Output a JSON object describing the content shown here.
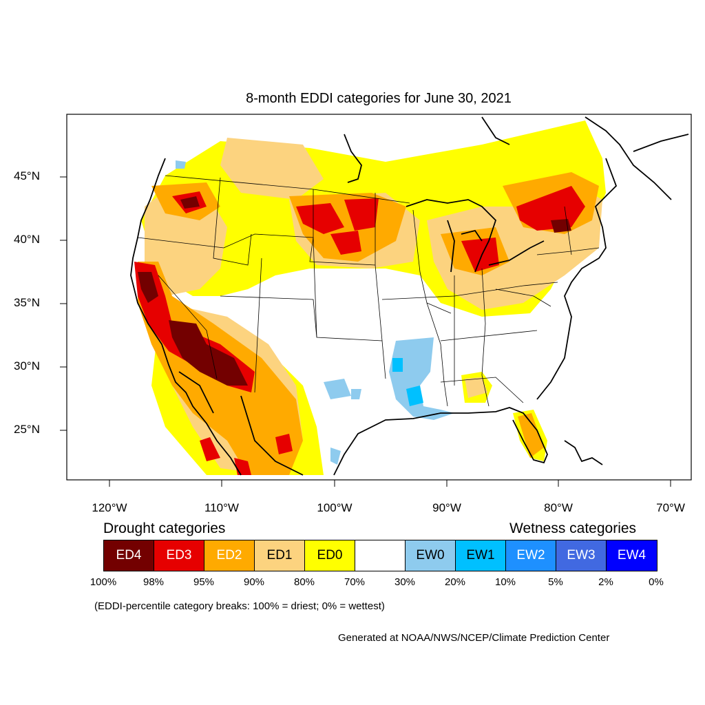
{
  "title": "8-month EDDI categories for June 30, 2021",
  "map": {
    "lat_labels": [
      "45°N",
      "40°N",
      "35°N",
      "30°N",
      "25°N"
    ],
    "lon_labels": [
      "120°W",
      "110°W",
      "100°W",
      "90°W",
      "80°W",
      "70°W"
    ]
  },
  "legend": {
    "drought_heading": "Drought categories",
    "wetness_heading": "Wetness categories",
    "categories": [
      {
        "label": "ED4",
        "color": "#730000",
        "text_color": "#ffffff"
      },
      {
        "label": "ED3",
        "color": "#e60000",
        "text_color": "#ffffff"
      },
      {
        "label": "ED2",
        "color": "#ffaa00",
        "text_color": "#ffffff"
      },
      {
        "label": "ED1",
        "color": "#fcd37f",
        "text_color": "#000000"
      },
      {
        "label": "ED0",
        "color": "#ffff00",
        "text_color": "#000000"
      },
      {
        "label": "",
        "color": "#ffffff",
        "text_color": "#000000"
      },
      {
        "label": "EW0",
        "color": "#8ecbee",
        "text_color": "#000000"
      },
      {
        "label": "EW1",
        "color": "#00c0ff",
        "text_color": "#000000"
      },
      {
        "label": "EW2",
        "color": "#1e90ff",
        "text_color": "#ffffff"
      },
      {
        "label": "EW3",
        "color": "#4169e1",
        "text_color": "#ffffff"
      },
      {
        "label": "EW4",
        "color": "#0000ff",
        "text_color": "#ffffff"
      }
    ],
    "breaks": [
      "100%",
      "98%",
      "95%",
      "90%",
      "80%",
      "70%",
      "30%",
      "20%",
      "10%",
      "5%",
      "2%",
      "0%"
    ],
    "note": "(EDDI-percentile category breaks: 100% = driest; 0% = wettest)"
  },
  "credit": "Generated at NOAA/NWS/NCEP/Climate Prediction Center"
}
